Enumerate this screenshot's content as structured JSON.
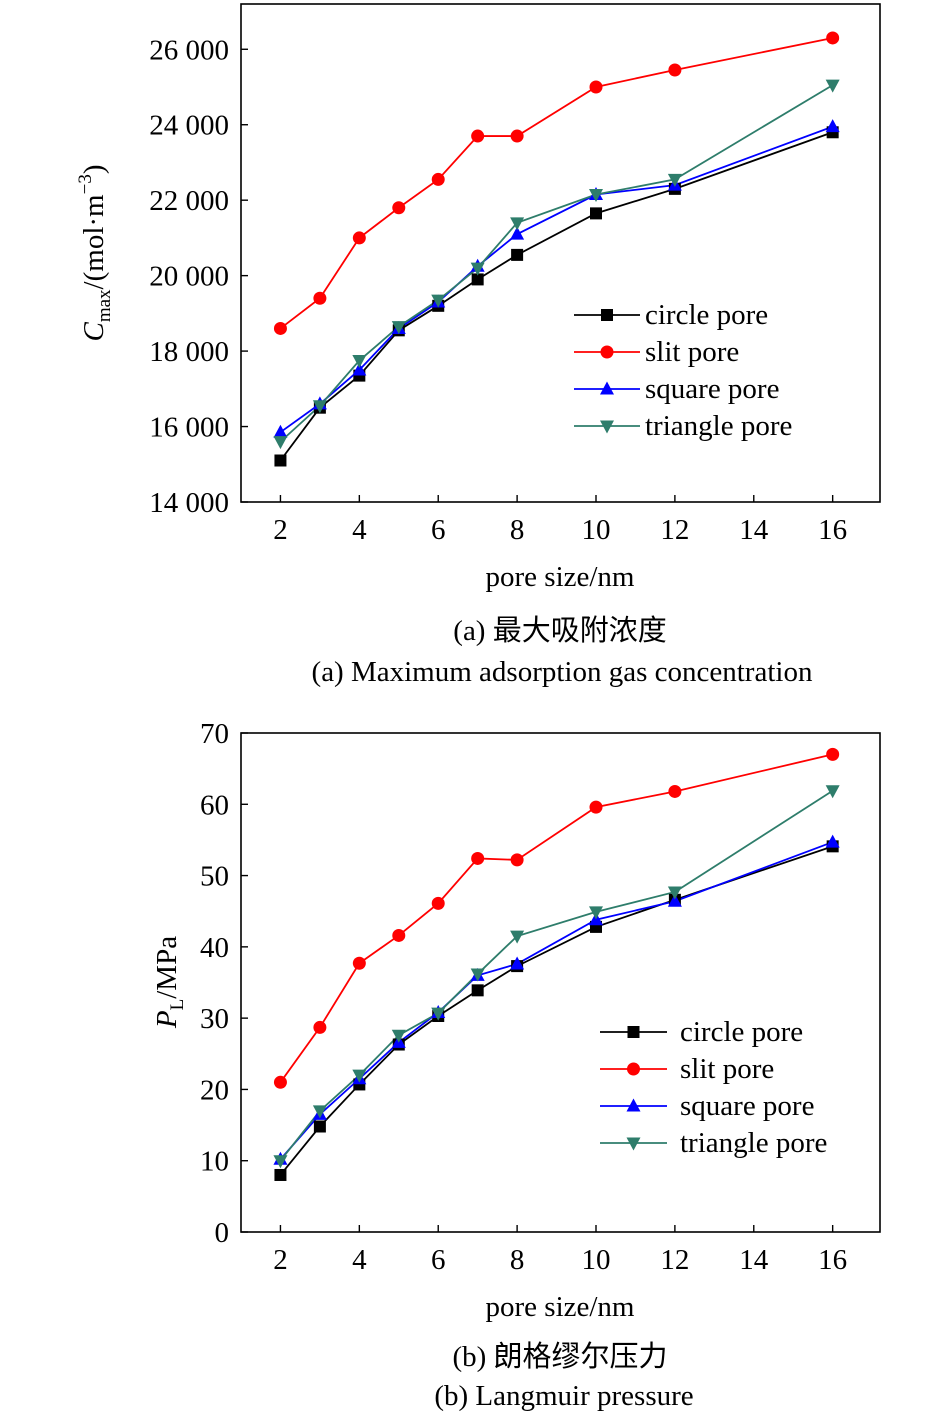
{
  "chart_data": [
    {
      "type": "line",
      "ylabel_main": "C",
      "ylabel_sub": "max",
      "ylabel_unit": "/(mol·m",
      "ylabel_sup": "−3",
      "ylabel_close": ")",
      "xlabel": "pore size/nm",
      "caption_cn": "(a) 最大吸附浓度",
      "caption_en": "(a) Maximum adsorption gas concentration",
      "xlim": [
        1,
        17.2
      ],
      "ylim": [
        14000,
        27200
      ],
      "xticks": [
        2,
        4,
        6,
        8,
        10,
        12,
        14,
        16
      ],
      "xtick_labels": [
        "2",
        "4",
        "6",
        "8",
        "10",
        "12",
        "14",
        "16"
      ],
      "yticks": [
        14000,
        16000,
        18000,
        20000,
        22000,
        24000,
        26000
      ],
      "ytick_labels": [
        "14 000",
        "16 000",
        "18 000",
        "20 000",
        "22 000",
        "24 000",
        "26 000"
      ],
      "grid": false,
      "legend_position": "right",
      "x": [
        2,
        3,
        4,
        5,
        6,
        7,
        8,
        10,
        12,
        16
      ],
      "series": [
        {
          "name": "circle pore",
          "color": "#000000",
          "marker": "square",
          "values": [
            15100,
            16500,
            17350,
            18550,
            19200,
            19900,
            20550,
            21650,
            22300,
            23800
          ]
        },
        {
          "name": "slit pore",
          "color": "#ff0000",
          "marker": "circle",
          "values": [
            18600,
            19400,
            21000,
            21800,
            22550,
            23700,
            23700,
            25000,
            25450,
            26300
          ]
        },
        {
          "name": "square pore",
          "color": "#0000ff",
          "marker": "triangle-up",
          "values": [
            15850,
            16600,
            17500,
            18600,
            19300,
            20250,
            21100,
            22150,
            22400,
            23950
          ]
        },
        {
          "name": "triangle pore",
          "color": "#2e7d6b",
          "marker": "triangle-down",
          "values": [
            15600,
            16550,
            17750,
            18650,
            19350,
            20200,
            21400,
            22150,
            22550,
            25050
          ]
        }
      ]
    },
    {
      "type": "line",
      "ylabel_main": "P",
      "ylabel_sub": "L",
      "ylabel_unit": "/MPa",
      "ylabel_sup": "",
      "ylabel_close": "",
      "xlabel": "pore size/nm",
      "caption_cn": "(b) 朗格缪尔压力",
      "caption_en": "(b) Langmuir pressure",
      "xlim": [
        1,
        17.2
      ],
      "ylim": [
        0,
        70
      ],
      "xticks": [
        2,
        4,
        6,
        8,
        10,
        12,
        14,
        16
      ],
      "xtick_labels": [
        "2",
        "4",
        "6",
        "8",
        "10",
        "12",
        "14",
        "16"
      ],
      "yticks": [
        0,
        10,
        20,
        30,
        40,
        50,
        60,
        70
      ],
      "ytick_labels": [
        "0",
        "10",
        "20",
        "30",
        "40",
        "50",
        "60",
        "70"
      ],
      "grid": false,
      "legend_position": "right",
      "x": [
        2,
        3,
        4,
        5,
        6,
        7,
        8,
        10,
        12,
        16
      ],
      "series": [
        {
          "name": "circle pore",
          "color": "#000000",
          "marker": "square",
          "values": [
            8.0,
            14.8,
            20.7,
            26.3,
            30.3,
            33.9,
            37.3,
            42.8,
            46.6,
            54.1
          ]
        },
        {
          "name": "slit pore",
          "color": "#ff0000",
          "marker": "circle",
          "values": [
            21.0,
            28.7,
            37.7,
            41.6,
            46.1,
            52.4,
            52.2,
            59.6,
            61.8,
            67.0
          ]
        },
        {
          "name": "square pore",
          "color": "#0000ff",
          "marker": "triangle-up",
          "values": [
            10.2,
            16.5,
            21.5,
            26.6,
            30.8,
            36.0,
            37.6,
            43.8,
            46.4,
            54.7
          ]
        },
        {
          "name": "triangle pore",
          "color": "#2e7d6b",
          "marker": "triangle-down",
          "values": [
            10.0,
            17.0,
            22.0,
            27.6,
            30.7,
            36.2,
            41.5,
            44.9,
            47.7,
            61.9
          ]
        }
      ]
    }
  ]
}
